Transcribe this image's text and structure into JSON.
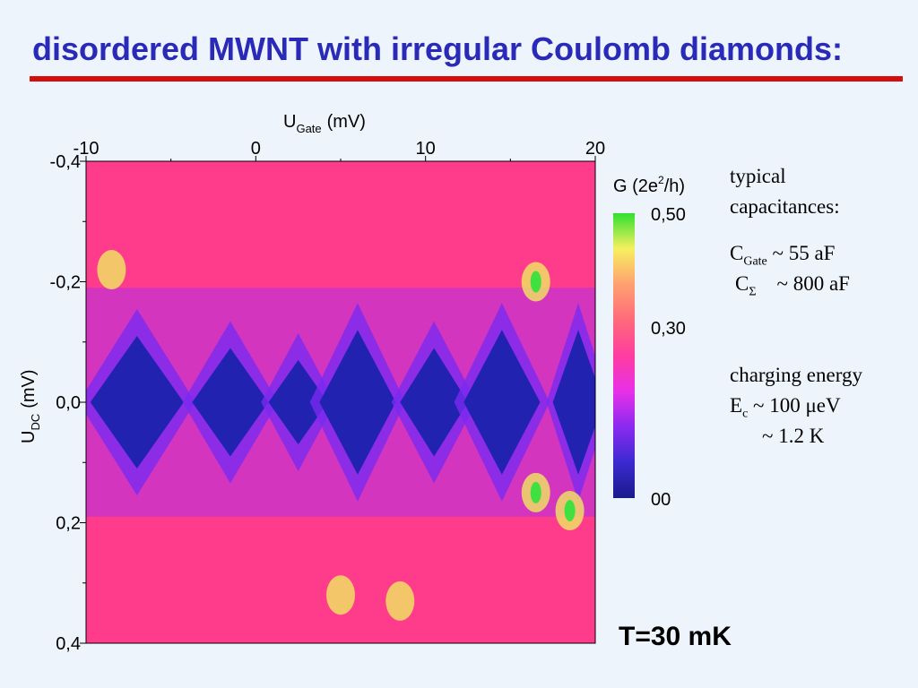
{
  "title": "disordered MWNT with irregular Coulomb diamonds:",
  "chart_data": {
    "type": "heatmap",
    "title": "disordered MWNT with irregular Coulomb diamonds:",
    "x_axis": {
      "label_main": "U",
      "label_sub": "Gate",
      "label_unit": "(mV)",
      "position": "top",
      "range": [
        -10,
        20
      ],
      "ticks": [
        -10,
        0,
        10,
        20
      ],
      "tick_labels": [
        "-10",
        "0",
        "10",
        "20"
      ]
    },
    "y_axis": {
      "label_main": "U",
      "label_sub": "DC",
      "label_unit": "(mV)",
      "range": [
        -0.4,
        0.4
      ],
      "ticks": [
        -0.4,
        -0.2,
        0.0,
        0.2,
        0.4
      ],
      "tick_labels": [
        "-0,4",
        "-0,2",
        "0,0",
        "0,2",
        "0,4"
      ]
    },
    "colorbar": {
      "label_main": "G (2e",
      "label_sup": "2",
      "label_end": "/h)",
      "range": [
        0,
        0.5
      ],
      "ticks": [
        0.5,
        0.3,
        0
      ],
      "tick_labels": [
        "0,50",
        "0,30",
        "00"
      ],
      "colors": [
        "#1a1a8c",
        "#3a2ad0",
        "#8a2af0",
        "#e830e8",
        "#ff3ca0",
        "#ff6a7a",
        "#ffa070",
        "#f6f060",
        "#30e030"
      ]
    },
    "diamonds": [
      {
        "center_gate": -7,
        "width_gate": 5.5,
        "half_height": 0.11
      },
      {
        "center_gate": -1.5,
        "width_gate": 4.5,
        "half_height": 0.09
      },
      {
        "center_gate": 2.5,
        "width_gate": 3.5,
        "half_height": 0.07
      },
      {
        "center_gate": 6,
        "width_gate": 4.5,
        "half_height": 0.12
      },
      {
        "center_gate": 10.5,
        "width_gate": 4,
        "half_height": 0.09
      },
      {
        "center_gate": 14.5,
        "width_gate": 4.5,
        "half_height": 0.12
      },
      {
        "center_gate": 19,
        "width_gate": 3,
        "half_height": 0.12
      }
    ]
  },
  "notes": {
    "cap_line1": "typical",
    "cap_line2": "capacitances:",
    "cgate_main": "C",
    "cgate_sub": "Gate",
    "cgate_value": " ~   55 aF",
    "csigma_main": "C",
    "csigma_sub": "Σ",
    "csigma_value": "    ~ 800 aF",
    "charging_line": "charging energy",
    "ec_main": "E",
    "ec_sub": "c",
    "ec_value": " ~ 100 μeV",
    "ec_kelvin": "~ 1.2 K"
  },
  "temperature": "T=30 mK"
}
